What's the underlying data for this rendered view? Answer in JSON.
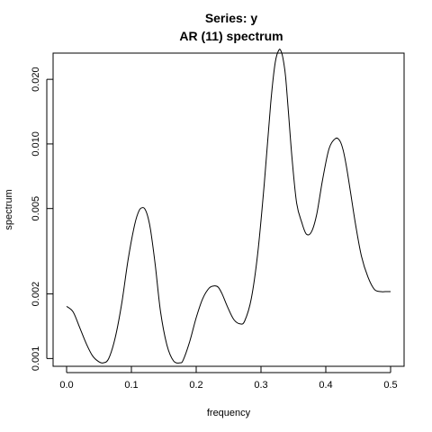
{
  "chart_data": {
    "type": "line",
    "title": "Series: y",
    "subtitle": "AR (11) spectrum",
    "xlabel": "frequency",
    "ylabel": "spectrum",
    "y_scale": "log",
    "grid": false,
    "xlim": [
      0.0,
      0.5
    ],
    "ylim": [
      0.00092,
      0.0265
    ],
    "x_ticks": [
      0.0,
      0.1,
      0.2,
      0.3,
      0.4,
      0.5
    ],
    "x_tick_labels": [
      "0.0",
      "0.1",
      "0.2",
      "0.3",
      "0.4",
      "0.5"
    ],
    "y_ticks": [
      0.001,
      0.002,
      0.005,
      0.01,
      0.02
    ],
    "y_tick_labels": [
      "0.001",
      "0.002",
      "0.005",
      "0.010",
      "0.020"
    ],
    "series": [
      {
        "x": [
          0.0,
          0.01,
          0.02,
          0.03,
          0.04,
          0.05,
          0.057,
          0.065,
          0.075,
          0.085,
          0.095,
          0.105,
          0.112,
          0.118,
          0.122,
          0.126,
          0.13,
          0.137,
          0.145,
          0.155,
          0.165,
          0.175,
          0.18,
          0.19,
          0.2,
          0.21,
          0.22,
          0.228,
          0.234,
          0.24,
          0.248,
          0.258,
          0.268,
          0.275,
          0.285,
          0.295,
          0.305,
          0.315,
          0.322,
          0.328,
          0.332,
          0.335,
          0.338,
          0.342,
          0.348,
          0.355,
          0.363,
          0.37,
          0.378,
          0.386,
          0.395,
          0.405,
          0.415,
          0.422,
          0.427,
          0.432,
          0.438,
          0.446,
          0.455,
          0.465,
          0.475,
          0.485,
          0.492,
          0.5
        ],
        "y": [
          0.00175,
          0.00165,
          0.0014,
          0.00118,
          0.00103,
          0.000965,
          0.000955,
          0.001,
          0.00125,
          0.0018,
          0.0029,
          0.0042,
          0.0049,
          0.00505,
          0.0049,
          0.0045,
          0.0039,
          0.0027,
          0.00165,
          0.00115,
          0.000975,
          0.000955,
          0.000985,
          0.0012,
          0.00155,
          0.0019,
          0.00213,
          0.00218,
          0.00215,
          0.002,
          0.00175,
          0.00152,
          0.00145,
          0.0015,
          0.0019,
          0.0031,
          0.0065,
          0.0155,
          0.024,
          0.0275,
          0.0265,
          0.024,
          0.0205,
          0.0145,
          0.0085,
          0.0053,
          0.0043,
          0.0038,
          0.0039,
          0.0047,
          0.0068,
          0.0095,
          0.0106,
          0.0103,
          0.0093,
          0.0078,
          0.006,
          0.0042,
          0.003,
          0.0024,
          0.0021,
          0.00205,
          0.00205,
          0.00205
        ]
      }
    ]
  }
}
